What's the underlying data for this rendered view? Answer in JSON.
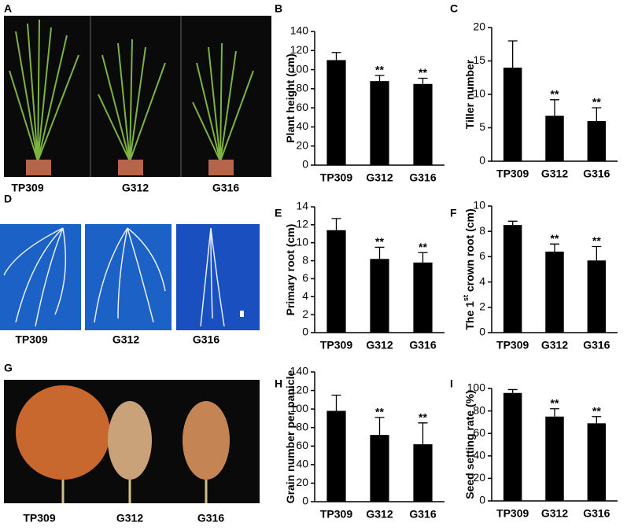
{
  "panels": [
    {
      "label": "A",
      "captions": [
        "TP309",
        "G312",
        "G316"
      ]
    },
    {
      "label": "D",
      "captions": [
        "TP309",
        "G312",
        "G316"
      ]
    },
    {
      "label": "G",
      "captions": [
        "TP309",
        "G312",
        "G316"
      ]
    }
  ],
  "chart_data": [
    {
      "type": "bar",
      "label": "B",
      "ylabel": [
        "Plant height (cm)"
      ],
      "categories": [
        "TP309",
        "G312",
        "G316"
      ],
      "values": [
        110,
        88,
        85
      ],
      "errors": [
        8,
        6,
        6
      ],
      "significance": [
        null,
        "**",
        "**"
      ],
      "color": "#000000",
      "ylim": [
        0,
        140
      ],
      "yticks": [
        0,
        20,
        40,
        60,
        80,
        100,
        120,
        140
      ]
    },
    {
      "type": "bar",
      "label": "C",
      "ylabel": [
        "Tiller number"
      ],
      "categories": [
        "TP309",
        "G312",
        "G316"
      ],
      "values": [
        14,
        6.8,
        6
      ],
      "errors": [
        4,
        2.4,
        2
      ],
      "significance": [
        null,
        "**",
        "**"
      ],
      "color": "#000000",
      "ylim": [
        0,
        20
      ],
      "yticks": [
        0,
        5,
        10,
        15,
        20
      ]
    },
    {
      "type": "bar",
      "label": "E",
      "ylabel": [
        "Primary root  (cm)"
      ],
      "categories": [
        "TP309",
        "G312",
        "G316"
      ],
      "values": [
        11.4,
        8.2,
        7.8
      ],
      "errors": [
        1.3,
        1.3,
        1.1
      ],
      "significance": [
        null,
        "**",
        "**"
      ],
      "color": "#000000",
      "ylim": [
        0,
        14
      ],
      "yticks": [
        0,
        2,
        4,
        6,
        8,
        10,
        12,
        14
      ]
    },
    {
      "type": "bar",
      "label": "F",
      "ylabel": [
        "The 1",
        "st",
        " crown root  (cm)"
      ],
      "categories": [
        "TP309",
        "G312",
        "G316"
      ],
      "values": [
        8.5,
        6.4,
        5.7
      ],
      "errors": [
        0.3,
        0.6,
        1.1
      ],
      "significance": [
        null,
        "**",
        "**"
      ],
      "color": "#000000",
      "ylim": [
        0,
        10
      ],
      "yticks": [
        0,
        2,
        4,
        6,
        8,
        10
      ]
    },
    {
      "type": "bar",
      "label": "H",
      "ylabel": [
        "Grain number per panicle"
      ],
      "categories": [
        "TP309",
        "G312",
        "G316"
      ],
      "values": [
        98,
        72,
        62
      ],
      "errors": [
        17,
        19,
        23
      ],
      "significance": [
        null,
        "**",
        "**"
      ],
      "color": "#000000",
      "ylim": [
        0,
        140
      ],
      "yticks": [
        0,
        20,
        40,
        60,
        80,
        100,
        120,
        140
      ]
    },
    {
      "type": "bar",
      "label": "I",
      "ylabel": [
        "Seed  setting rate (%)"
      ],
      "categories": [
        "TP309",
        "G312",
        "G316"
      ],
      "values": [
        96,
        75,
        69
      ],
      "errors": [
        3,
        7,
        6
      ],
      "significance": [
        null,
        "**",
        "**"
      ],
      "color": "#000000",
      "ylim": [
        0,
        100
      ],
      "yticks": [
        0,
        20,
        40,
        60,
        80,
        100
      ]
    }
  ]
}
